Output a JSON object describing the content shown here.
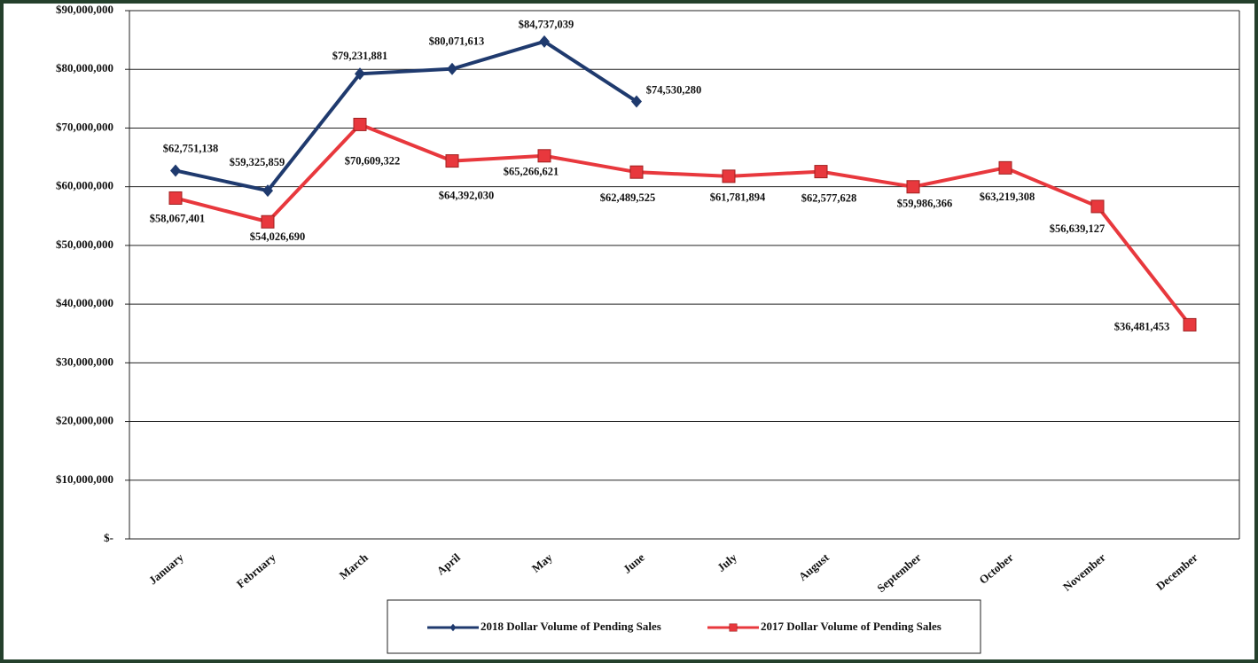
{
  "chart_data": {
    "type": "line",
    "categories": [
      "January",
      "February",
      "March",
      "April",
      "May",
      "June",
      "July",
      "August",
      "September",
      "October",
      "November",
      "December"
    ],
    "series": [
      {
        "name": "2018 Dollar Volume of Pending Sales",
        "color": "#1f3a6e",
        "marker": "diamond",
        "values": [
          62751138,
          59325859,
          79231881,
          80071613,
          84737039,
          74530280,
          null,
          null,
          null,
          null,
          null,
          null
        ],
        "value_labels": [
          "$62,751,138",
          "$59,325,859",
          "$79,231,881",
          "$80,071,613",
          "$84,737,039",
          "$74,530,280",
          null,
          null,
          null,
          null,
          null,
          null
        ]
      },
      {
        "name": "2017 Dollar Volume of Pending Sales",
        "color": "#e8383d",
        "marker": "square",
        "values": [
          58067401,
          54026690,
          70609322,
          64392030,
          65266621,
          62489525,
          61781894,
          62577628,
          59986366,
          63219308,
          56639127,
          36481453
        ],
        "value_labels": [
          "$58,067,401",
          "$54,026,690",
          "$70,609,322",
          "$64,392,030",
          "$65,266,621",
          "$62,489,525",
          "$61,781,894",
          "$62,577,628",
          "$59,986,366",
          "$63,219,308",
          "$56,639,127",
          "$36,481,453"
        ]
      }
    ],
    "ylim": [
      0,
      90000000
    ],
    "yticks": [
      {
        "value": 0,
        "label": "$-"
      },
      {
        "value": 10000000,
        "label": "$10,000,000"
      },
      {
        "value": 20000000,
        "label": "$20,000,000"
      },
      {
        "value": 30000000,
        "label": "$30,000,000"
      },
      {
        "value": 40000000,
        "label": "$40,000,000"
      },
      {
        "value": 50000000,
        "label": "$50,000,000"
      },
      {
        "value": 60000000,
        "label": "$60,000,000"
      },
      {
        "value": 70000000,
        "label": "$70,000,000"
      },
      {
        "value": 80000000,
        "label": "$80,000,000"
      },
      {
        "value": 90000000,
        "label": "$90,000,000"
      }
    ],
    "grid": true,
    "legend": "bottom"
  }
}
